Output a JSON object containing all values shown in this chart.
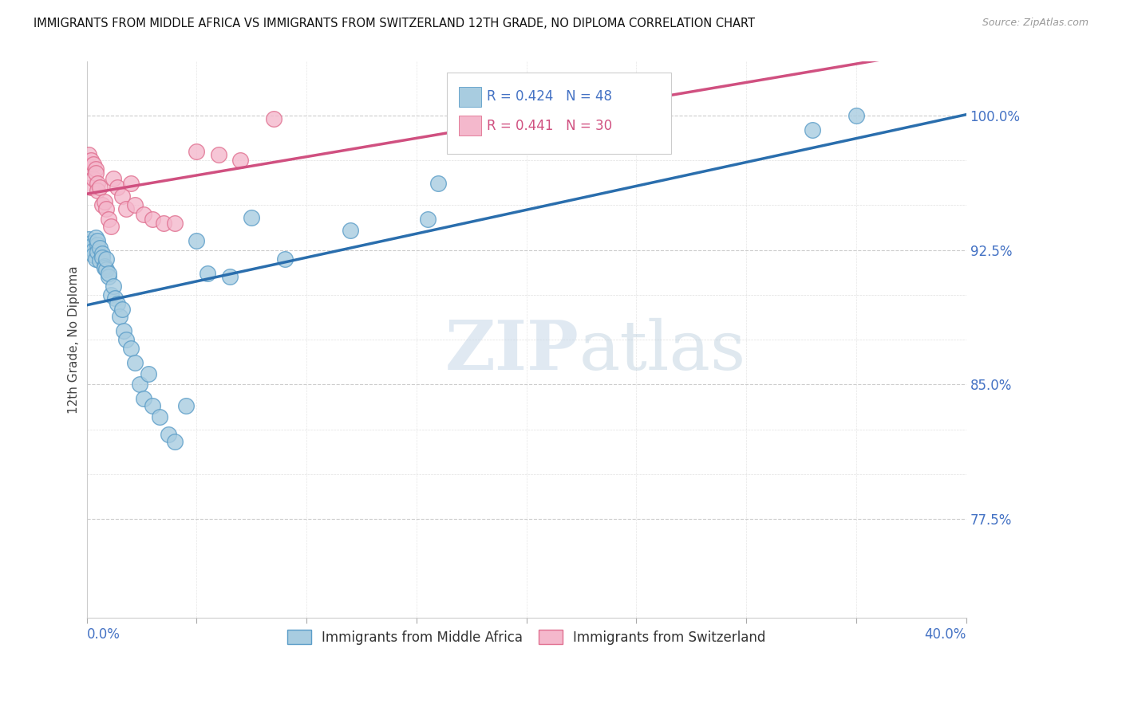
{
  "title": "IMMIGRANTS FROM MIDDLE AFRICA VS IMMIGRANTS FROM SWITZERLAND 12TH GRADE, NO DIPLOMA CORRELATION CHART",
  "source": "Source: ZipAtlas.com",
  "ylabel": "12th Grade, No Diploma",
  "legend_blue_R": "0.424",
  "legend_blue_N": "48",
  "legend_pink_R": "0.441",
  "legend_pink_N": "30",
  "blue_scatter_x": [
    0.001,
    0.002,
    0.002,
    0.003,
    0.003,
    0.004,
    0.004,
    0.005,
    0.005,
    0.005,
    0.006,
    0.006,
    0.007,
    0.007,
    0.008,
    0.008,
    0.009,
    0.009,
    0.01,
    0.01,
    0.011,
    0.012,
    0.013,
    0.014,
    0.015,
    0.016,
    0.017,
    0.018,
    0.02,
    0.022,
    0.024,
    0.026,
    0.028,
    0.03,
    0.033,
    0.037,
    0.04,
    0.045,
    0.05,
    0.055,
    0.065,
    0.075,
    0.09,
    0.12,
    0.155,
    0.16,
    0.33,
    0.35
  ],
  "blue_scatter_y": [
    0.931,
    0.929,
    0.927,
    0.925,
    0.922,
    0.932,
    0.92,
    0.928,
    0.924,
    0.93,
    0.926,
    0.919,
    0.923,
    0.921,
    0.916,
    0.915,
    0.914,
    0.92,
    0.91,
    0.912,
    0.9,
    0.905,
    0.898,
    0.895,
    0.888,
    0.892,
    0.88,
    0.875,
    0.87,
    0.862,
    0.85,
    0.842,
    0.856,
    0.838,
    0.832,
    0.822,
    0.818,
    0.838,
    0.93,
    0.912,
    0.91,
    0.943,
    0.92,
    0.936,
    0.942,
    0.962,
    0.992,
    1.0
  ],
  "pink_scatter_x": [
    0.001,
    0.001,
    0.002,
    0.002,
    0.003,
    0.003,
    0.004,
    0.004,
    0.005,
    0.005,
    0.006,
    0.007,
    0.008,
    0.009,
    0.01,
    0.011,
    0.012,
    0.014,
    0.016,
    0.018,
    0.02,
    0.022,
    0.026,
    0.03,
    0.035,
    0.04,
    0.05,
    0.06,
    0.07,
    0.085
  ],
  "pink_scatter_y": [
    0.978,
    0.972,
    0.975,
    0.96,
    0.973,
    0.965,
    0.97,
    0.968,
    0.962,
    0.958,
    0.96,
    0.95,
    0.952,
    0.948,
    0.942,
    0.938,
    0.965,
    0.96,
    0.955,
    0.948,
    0.962,
    0.95,
    0.945,
    0.942,
    0.94,
    0.94,
    0.98,
    0.978,
    0.975,
    0.998
  ],
  "blue_color": "#a8cce0",
  "pink_color": "#f4b8cc",
  "blue_edge_color": "#5b9dc8",
  "pink_edge_color": "#e07090",
  "blue_line_color": "#2a6ead",
  "pink_line_color": "#d05080",
  "grid_color": "#cccccc",
  "ytick_positions": [
    0.775,
    0.85,
    0.925,
    1.0
  ],
  "ytick_labels": [
    "77.5%",
    "85.0%",
    "92.5%",
    "100.0%"
  ],
  "xlim": [
    0.0,
    0.4
  ],
  "ylim": [
    0.72,
    1.03
  ],
  "background_color": "#ffffff",
  "watermark_zip": "ZIP",
  "watermark_atlas": "atlas"
}
